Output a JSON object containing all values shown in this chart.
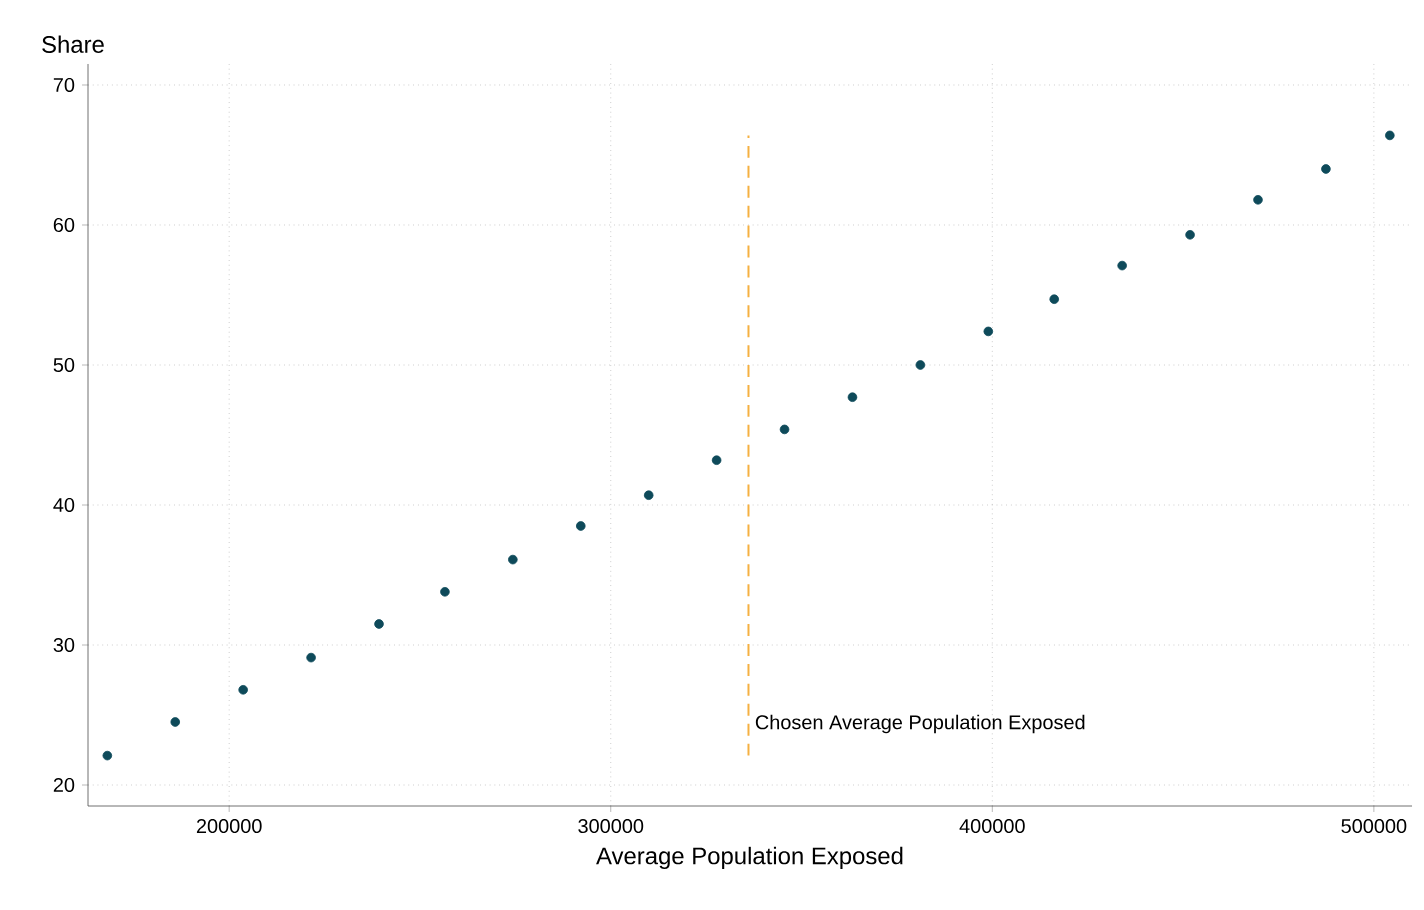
{
  "chart_data": {
    "type": "scatter",
    "xlabel": "Average Population Exposed",
    "ylabel": "Share",
    "x": [
      168063,
      185864,
      203665,
      221466,
      239267,
      256545,
      274346,
      292147,
      309948,
      327749,
      345550,
      363351,
      381152,
      398953,
      416230,
      434031,
      451832,
      469634,
      487434,
      504188
    ],
    "series": [
      {
        "color": "#0e4a5a",
        "values": [
          22.1,
          24.5,
          26.8,
          29.1,
          31.5,
          33.8,
          36.1,
          38.5,
          40.7,
          43.2,
          45.4,
          47.7,
          50.0,
          52.4,
          54.7,
          57.1,
          59.3,
          61.8,
          64.0,
          66.4
        ]
      }
    ],
    "xlim": [
      163000,
      510000
    ],
    "ylim": [
      18.5,
      71.5
    ],
    "xticks": [
      200000,
      300000,
      400000,
      500000
    ],
    "yticks": [
      20,
      30,
      40,
      50,
      60,
      70
    ],
    "grid": true,
    "marker": "circle",
    "ref_lines": [
      {
        "axis": "x",
        "value": 336100,
        "label": "Chosen Average Population Exposed",
        "color": "#f5b041",
        "line_style": "dashed"
      }
    ]
  }
}
